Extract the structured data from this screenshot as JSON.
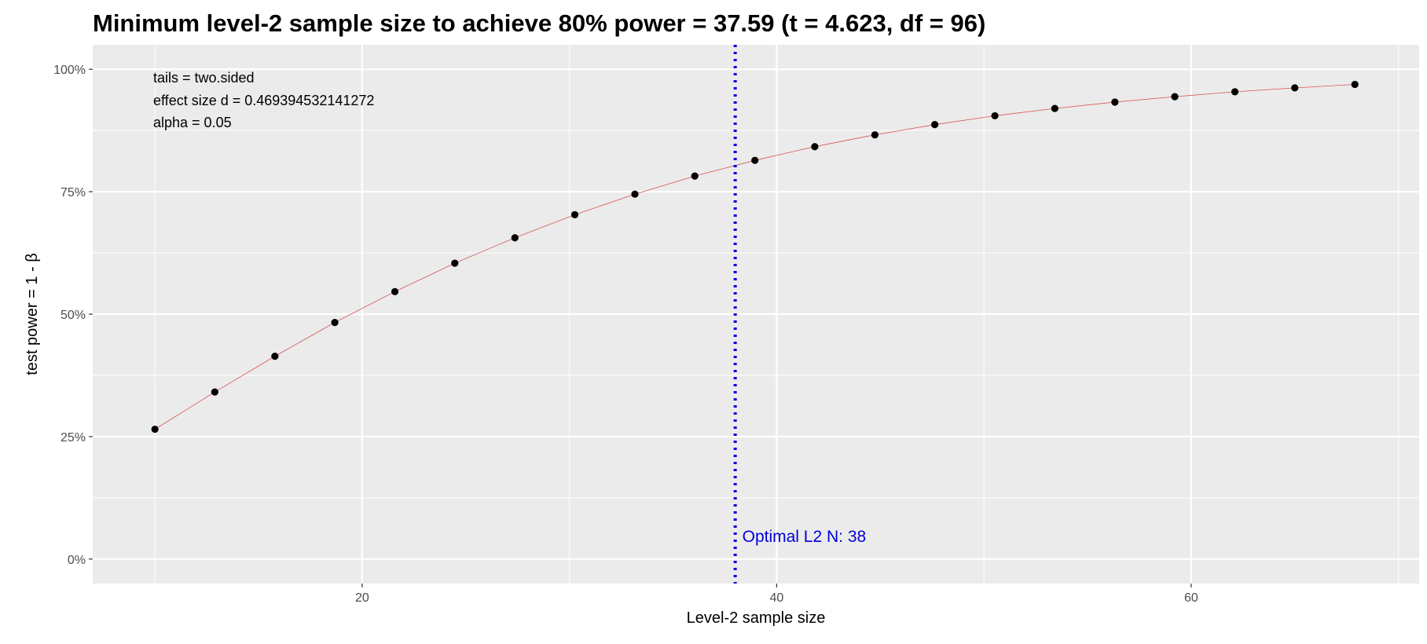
{
  "chart_data": {
    "type": "line",
    "title": "Minimum level-2 sample size to achieve 80% power = 37.59 (t = 4.623, df = 96)",
    "xlabel": "Level-2 sample size",
    "ylabel": "test power = 1 - β",
    "xlim": [
      7,
      71
    ],
    "ylim": [
      -0.05,
      1.05
    ],
    "x_ticks": [
      20,
      40,
      60
    ],
    "x_tick_labels": [
      "20",
      "40",
      "60"
    ],
    "y_ticks": [
      0,
      0.25,
      0.5,
      0.75,
      1.0
    ],
    "y_tick_labels": [
      "0%",
      "25%",
      "50%",
      "75%",
      "100%"
    ],
    "grid": true,
    "series": [
      {
        "points_and_line": true,
        "x": [
          10,
          12.89,
          15.79,
          18.68,
          21.58,
          24.47,
          27.37,
          30.26,
          33.16,
          36.05,
          38.95,
          41.84,
          44.74,
          47.63,
          50.53,
          53.42,
          56.32,
          59.21,
          62.11,
          65.0,
          67.9
        ],
        "y": [
          0.265,
          0.341,
          0.414,
          0.483,
          0.546,
          0.604,
          0.656,
          0.703,
          0.745,
          0.782,
          0.814,
          0.842,
          0.866,
          0.887,
          0.905,
          0.92,
          0.933,
          0.944,
          0.954,
          0.962,
          0.969
        ]
      }
    ],
    "vline": {
      "x": 38,
      "label": "Optimal L2 N:  38"
    },
    "annotations": [
      "tails = two.sided",
      "effect size d = 0.469394532141272",
      "alpha = 0.05"
    ],
    "colors": {
      "panel_background": "#ebebeb",
      "grid_major": "#ffffff",
      "line": "#d9534f",
      "points": "#000000",
      "vline": "#0000dd"
    }
  }
}
